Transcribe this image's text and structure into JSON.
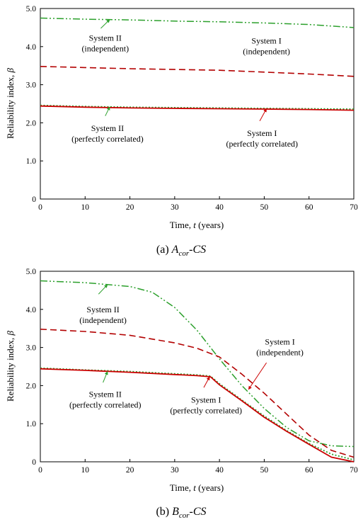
{
  "colors": {
    "system_II_independent": "#2ca02c",
    "system_I_independent": "#b30000",
    "system_II_correlated": "#2ca02c",
    "system_I_correlated": "#cc0000",
    "arrow": "#2ca02c",
    "arrow_red": "#cc0000"
  },
  "chart_data": [
    {
      "type": "line",
      "caption": {
        "prefix": "(a) ",
        "main": "A",
        "sub": "cor",
        "suffix": "-CS"
      },
      "xlabel_prefix": "Time, ",
      "xlabel_var": "t",
      "xlabel_suffix": " (years)",
      "ylabel_prefix": "Reliability index, ",
      "ylabel_var": "β",
      "xlim": [
        0,
        70
      ],
      "ylim": [
        0,
        5
      ],
      "xticks": [
        "0",
        "10",
        "20",
        "30",
        "40",
        "50",
        "60",
        "70"
      ],
      "yticks": [
        "0",
        "1.0",
        "2.0",
        "3.0",
        "4.0",
        "5.0"
      ],
      "grid": false,
      "series": [
        {
          "key": "sysII_ind",
          "style": "dashdotdot",
          "color": "#2ca02c",
          "x": [
            0,
            10,
            20,
            30,
            40,
            50,
            60,
            70
          ],
          "y": [
            4.75,
            4.72,
            4.7,
            4.67,
            4.65,
            4.62,
            4.58,
            4.5
          ]
        },
        {
          "key": "sysI_ind",
          "style": "dashed",
          "color": "#b30000",
          "x": [
            0,
            10,
            20,
            30,
            40,
            50,
            60,
            70
          ],
          "y": [
            3.48,
            3.45,
            3.42,
            3.4,
            3.38,
            3.33,
            3.28,
            3.22
          ]
        },
        {
          "key": "sysII_cor",
          "style": "dotted",
          "color": "#2ca02c",
          "x": [
            0,
            10,
            20,
            30,
            40,
            50,
            60,
            70
          ],
          "y": [
            2.46,
            2.43,
            2.41,
            2.4,
            2.39,
            2.38,
            2.37,
            2.36
          ]
        },
        {
          "key": "sysI_cor",
          "style": "solid",
          "color": "#cc0000",
          "x": [
            0,
            10,
            20,
            30,
            40,
            50,
            60,
            70
          ],
          "y": [
            2.44,
            2.41,
            2.39,
            2.38,
            2.37,
            2.36,
            2.35,
            2.33
          ]
        }
      ],
      "annotations": [
        {
          "lines": [
            "System II",
            "(independent)"
          ],
          "tx": 14.5,
          "ty": 4.15,
          "arrow": {
            "from": [
              13.5,
              4.48
            ],
            "to": [
              15.5,
              4.71
            ]
          },
          "color": "#2ca02c"
        },
        {
          "lines": [
            "System I",
            "(independent)"
          ],
          "tx": 50.5,
          "ty": 4.08,
          "arrow": null,
          "color": "#b30000"
        },
        {
          "lines": [
            "System II",
            "(perfectly correlated)"
          ],
          "tx": 15.0,
          "ty": 1.78,
          "arrow": {
            "from": [
              14.5,
              2.18
            ],
            "to": [
              15.5,
              2.42
            ]
          },
          "color": "#2ca02c"
        },
        {
          "lines": [
            "System I",
            "(perfectly correlated)"
          ],
          "tx": 49.5,
          "ty": 1.65,
          "arrow": {
            "from": [
              49.0,
              2.05
            ],
            "to": [
              50.5,
              2.37
            ]
          },
          "color": "#cc0000"
        }
      ]
    },
    {
      "type": "line",
      "caption": {
        "prefix": "(b) ",
        "main": "B",
        "sub": "cor",
        "suffix": "-CS"
      },
      "xlabel_prefix": "Time, ",
      "xlabel_var": "t",
      "xlabel_suffix": " (years)",
      "ylabel_prefix": "Reliability index, ",
      "ylabel_var": "β",
      "xlim": [
        0,
        70
      ],
      "ylim": [
        0,
        5
      ],
      "xticks": [
        "0",
        "10",
        "20",
        "30",
        "40",
        "50",
        "60",
        "70"
      ],
      "yticks": [
        "0",
        "1.0",
        "2.0",
        "3.0",
        "4.0",
        "5.0"
      ],
      "grid": false,
      "series": [
        {
          "key": "sysII_ind",
          "style": "dashdotdot",
          "color": "#2ca02c",
          "x": [
            0,
            10,
            20,
            25,
            30,
            35,
            40,
            45,
            50,
            55,
            60,
            65,
            70
          ],
          "y": [
            4.75,
            4.7,
            4.6,
            4.45,
            4.05,
            3.45,
            2.7,
            2.0,
            1.4,
            0.9,
            0.55,
            0.42,
            0.4
          ]
        },
        {
          "key": "sysI_ind",
          "style": "dashed",
          "color": "#b30000",
          "x": [
            0,
            10,
            20,
            30,
            35,
            40,
            45,
            50,
            55,
            60,
            65,
            70
          ],
          "y": [
            3.48,
            3.42,
            3.32,
            3.12,
            2.98,
            2.75,
            2.3,
            1.8,
            1.25,
            0.7,
            0.3,
            0.12
          ]
        },
        {
          "key": "sysII_cor",
          "style": "dotted",
          "color": "#2ca02c",
          "x": [
            0,
            10,
            20,
            30,
            35,
            38,
            40,
            45,
            50,
            55,
            60,
            65,
            70
          ],
          "y": [
            2.46,
            2.41,
            2.37,
            2.31,
            2.28,
            2.25,
            2.05,
            1.62,
            1.2,
            0.82,
            0.48,
            0.2,
            0.05
          ]
        },
        {
          "key": "sysI_cor",
          "style": "solid",
          "color": "#cc0000",
          "x": [
            0,
            10,
            20,
            30,
            35,
            38,
            40,
            45,
            50,
            55,
            60,
            65,
            70
          ],
          "y": [
            2.44,
            2.4,
            2.35,
            2.29,
            2.26,
            2.23,
            2.02,
            1.6,
            1.17,
            0.8,
            0.46,
            0.12,
            0.0
          ]
        }
      ],
      "annotations": [
        {
          "lines": [
            "System II",
            "(independent)"
          ],
          "tx": 14.0,
          "ty": 3.92,
          "arrow": {
            "from": [
              13.0,
              4.4
            ],
            "to": [
              15.0,
              4.65
            ]
          },
          "color": "#2ca02c"
        },
        {
          "lines": [
            "System I",
            "(independent)"
          ],
          "tx": 53.5,
          "ty": 3.08,
          "arrow": {
            "from": [
              50.5,
              2.6
            ],
            "to": [
              46.5,
              1.9
            ]
          },
          "color": "#cc0000"
        },
        {
          "lines": [
            "System II",
            "(perfectly correlated)"
          ],
          "tx": 14.5,
          "ty": 1.7,
          "arrow": {
            "from": [
              14.0,
              2.08
            ],
            "to": [
              15.0,
              2.37
            ]
          },
          "color": "#2ca02c"
        },
        {
          "lines": [
            "System I",
            "(perfectly correlated)"
          ],
          "tx": 37.0,
          "ty": 1.55,
          "arrow": {
            "from": [
              36.5,
              1.95
            ],
            "to": [
              37.8,
              2.23
            ]
          },
          "color": "#cc0000"
        }
      ]
    }
  ]
}
